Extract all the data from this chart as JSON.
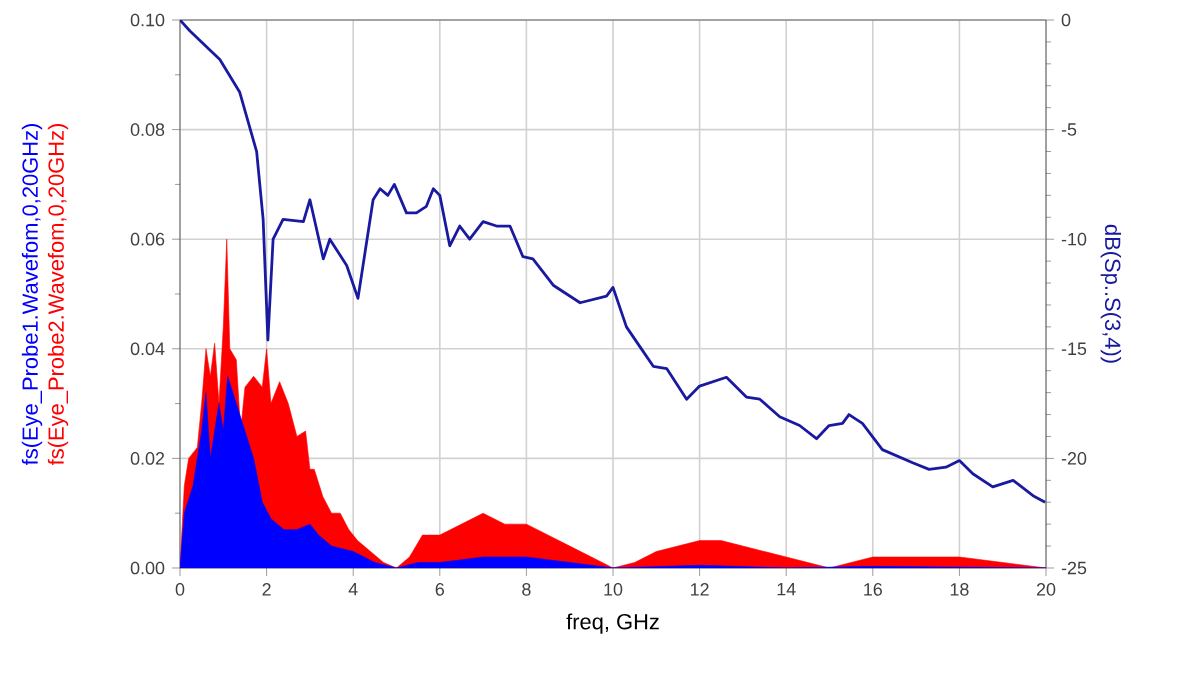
{
  "chart_data": {
    "type": "area",
    "xlabel": "freq, GHz",
    "y2label": "dB(Sp..S(3,4))",
    "xlim": [
      0,
      20
    ],
    "xticks": [
      0,
      2,
      4,
      6,
      8,
      10,
      12,
      14,
      16,
      18,
      20
    ],
    "ylim": [
      0,
      0.1
    ],
    "yticks": [
      {
        "value": 0,
        "label": "0.00"
      },
      {
        "value": 0.02,
        "label": "0.02"
      },
      {
        "value": 0.04,
        "label": "0.04"
      },
      {
        "value": 0.06,
        "label": "0.06"
      },
      {
        "value": 0.08,
        "label": "0.08"
      },
      {
        "value": 0.1,
        "label": "0.10"
      }
    ],
    "y2lim": [
      -25,
      0
    ],
    "y2ticks": [
      -25,
      -20,
      -15,
      -10,
      -5,
      0
    ],
    "grid": true,
    "series": [
      {
        "name": "fs(Eye_Probe1.Wavefom,0,20GHz)",
        "color": "#0000ff",
        "x": [
          0,
          0.1,
          0.3,
          0.5,
          0.6,
          0.7,
          0.9,
          1.0,
          1.1,
          1.3,
          1.5,
          1.7,
          1.9,
          2.1,
          2.4,
          2.7,
          3.0,
          3.2,
          3.5,
          4.0,
          4.5,
          5,
          5.5,
          6,
          7,
          8,
          9,
          10,
          12,
          14,
          16,
          20
        ],
        "values": [
          0,
          0.01,
          0.015,
          0.025,
          0.032,
          0.02,
          0.03,
          0.025,
          0.035,
          0.03,
          0.025,
          0.02,
          0.012,
          0.009,
          0.007,
          0.007,
          0.008,
          0.006,
          0.004,
          0.003,
          0.001,
          0,
          0.001,
          0.001,
          0.002,
          0.002,
          0.001,
          0,
          0.0005,
          0,
          0.0003,
          0
        ]
      },
      {
        "name": "fs(Eye_Probe2.Wavefom,0,20GHz)",
        "color": "#ff0000",
        "x": [
          0,
          0.1,
          0.2,
          0.4,
          0.5,
          0.6,
          0.7,
          0.8,
          0.9,
          1.0,
          1.08,
          1.15,
          1.3,
          1.4,
          1.5,
          1.7,
          1.9,
          2.0,
          2.1,
          2.3,
          2.5,
          2.7,
          2.9,
          3.0,
          3.1,
          3.3,
          3.5,
          3.7,
          3.9,
          4.1,
          4.4,
          4.7,
          5.0,
          5.3,
          5.6,
          6.0,
          6.5,
          7.0,
          7.5,
          8.0,
          8.5,
          9.0,
          9.5,
          10.0,
          10.5,
          11,
          11.5,
          12,
          12.5,
          13,
          13.5,
          14,
          14.5,
          15,
          15.5,
          16,
          17,
          18,
          19,
          20
        ],
        "values": [
          0,
          0.015,
          0.02,
          0.022,
          0.03,
          0.04,
          0.035,
          0.041,
          0.03,
          0.044,
          0.06,
          0.04,
          0.038,
          0.025,
          0.033,
          0.035,
          0.033,
          0.04,
          0.03,
          0.034,
          0.03,
          0.024,
          0.025,
          0.018,
          0.018,
          0.013,
          0.01,
          0.01,
          0.007,
          0.005,
          0.003,
          0.001,
          0,
          0.002,
          0.006,
          0.006,
          0.008,
          0.01,
          0.008,
          0.008,
          0.006,
          0.004,
          0.002,
          0,
          0.001,
          0.003,
          0.004,
          0.005,
          0.005,
          0.004,
          0.003,
          0.002,
          0.001,
          0,
          0.001,
          0.002,
          0.002,
          0.002,
          0.001,
          0
        ]
      },
      {
        "type": "line",
        "axis": "y2",
        "color": "#1a1aa0",
        "x": [
          0,
          0.23,
          0.92,
          1.38,
          1.77,
          1.92,
          2.03,
          2.15,
          2.38,
          2.85,
          3.0,
          3.31,
          3.46,
          3.85,
          4.11,
          4.46,
          4.62,
          4.8,
          4.95,
          5.23,
          5.46,
          5.69,
          5.85,
          6.0,
          6.23,
          6.46,
          6.69,
          7.0,
          7.31,
          7.62,
          7.92,
          8.15,
          8.62,
          9.24,
          9.85,
          10.0,
          10.31,
          10.62,
          10.93,
          11.24,
          11.7,
          12.0,
          12.62,
          13.08,
          13.39,
          13.85,
          14.31,
          14.7,
          14.99,
          15.3,
          15.45,
          15.76,
          16.22,
          16.92,
          17.3,
          17.69,
          18.0,
          18.31,
          18.77,
          19.24,
          19.7,
          19.98
        ],
        "values": [
          0,
          -0.5,
          -1.8,
          -3.3,
          -6.0,
          -9.1,
          -14.6,
          -10.0,
          -9.1,
          -9.2,
          -8.2,
          -10.9,
          -10.0,
          -11.2,
          -12.7,
          -8.2,
          -7.7,
          -8.0,
          -7.5,
          -8.8,
          -8.8,
          -8.5,
          -7.7,
          -8.0,
          -10.3,
          -9.4,
          -10.0,
          -9.2,
          -9.4,
          -9.4,
          -10.8,
          -10.9,
          -12.1,
          -12.9,
          -12.6,
          -12.2,
          -14.0,
          -14.9,
          -15.8,
          -15.9,
          -17.3,
          -16.7,
          -16.3,
          -17.2,
          -17.3,
          -18.1,
          -18.5,
          -19.1,
          -18.5,
          -18.4,
          -18.0,
          -18.4,
          -19.6,
          -20.2,
          -20.5,
          -20.4,
          -20.1,
          -20.7,
          -21.3,
          -21.0,
          -21.7,
          -22.0
        ]
      }
    ]
  }
}
